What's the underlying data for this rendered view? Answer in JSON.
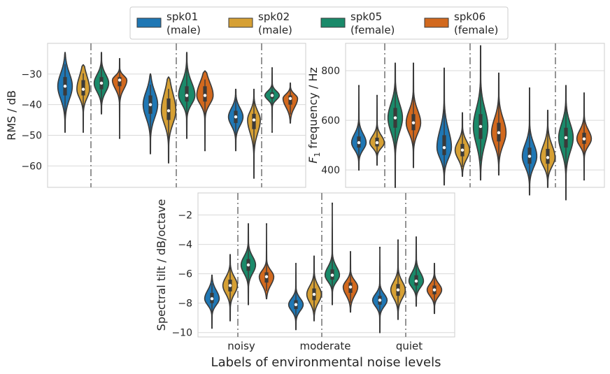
{
  "legend": [
    {
      "name": "spk01",
      "sub": "(male)",
      "color": "#1f77b4"
    },
    {
      "name": "spk02",
      "sub": "(male)",
      "color": "#d6a034"
    },
    {
      "name": "spk05",
      "sub": "(female)",
      "color": "#1a8a6a"
    },
    {
      "name": "spk06",
      "sub": "(female)",
      "color": "#d2691e"
    }
  ],
  "xlabel": "Labels of environmental noise levels",
  "categories": [
    "noisy",
    "moderate",
    "quiet"
  ],
  "chart_data": [
    {
      "type": "violin",
      "ylabel": "RMS / dB",
      "ylim": [
        -67,
        -20
      ],
      "yticks": [
        -30,
        -40,
        -50,
        -60
      ],
      "ytick_labels": [
        "−30",
        "−40",
        "−50",
        "−60"
      ],
      "series": [
        {
          "name": "spk01",
          "values": [
            {
              "median": -34,
              "q1": -37,
              "q3": -31,
              "min": -49,
              "max": -23,
              "width": 0.8
            },
            {
              "median": -40,
              "q1": -43,
              "q3": -37,
              "min": -56,
              "max": -30,
              "width": 0.8
            },
            {
              "median": -44,
              "q1": -46,
              "q3": -42,
              "min": -55,
              "max": -35,
              "width": 0.8
            }
          ]
        },
        {
          "name": "spk02",
          "values": [
            {
              "median": -35,
              "q1": -37,
              "q3": -32,
              "min": -49,
              "max": -27,
              "width": 0.7
            },
            {
              "median": -42,
              "q1": -45,
              "q3": -38,
              "min": -59,
              "max": -31,
              "width": 0.8
            },
            {
              "median": -45,
              "q1": -48,
              "q3": -43,
              "min": -64,
              "max": -35,
              "width": 0.7
            }
          ]
        },
        {
          "name": "spk05",
          "values": [
            {
              "median": -33,
              "q1": -35,
              "q3": -31,
              "min": -43,
              "max": -23,
              "width": 0.8
            },
            {
              "median": -37,
              "q1": -39,
              "q3": -34,
              "min": -51,
              "max": -23,
              "width": 0.9
            },
            {
              "median": -37,
              "q1": -38,
              "q3": -36,
              "min": -49,
              "max": -28,
              "width": 0.8
            }
          ]
        },
        {
          "name": "spk06",
          "values": [
            {
              "median": -32,
              "q1": -34,
              "q3": -31,
              "min": -51,
              "max": -25,
              "width": 0.8
            },
            {
              "median": -37,
              "q1": -39,
              "q3": -34,
              "min": -55,
              "max": -29,
              "width": 0.9
            },
            {
              "median": -38,
              "q1": -40,
              "q3": -37,
              "min": -46,
              "max": -33,
              "width": 0.8
            }
          ]
        }
      ]
    },
    {
      "type": "violin",
      "ylabel_main": "F",
      "ylabel_sub": "1",
      "ylabel_rest": " frequency / Hz",
      "ylim": [
        330,
        910
      ],
      "yticks": [
        400,
        600,
        800
      ],
      "ytick_labels": [
        "400",
        "600",
        "800"
      ],
      "series": [
        {
          "name": "spk01",
          "values": [
            {
              "median": 510,
              "q1": 490,
              "q3": 535,
              "min": 400,
              "max": 740,
              "width": 0.8
            },
            {
              "median": 490,
              "q1": 460,
              "q3": 540,
              "min": 340,
              "max": 810,
              "width": 0.8
            },
            {
              "median": 455,
              "q1": 425,
              "q3": 490,
              "min": 300,
              "max": 730,
              "width": 0.8
            }
          ]
        },
        {
          "name": "spk02",
          "values": [
            {
              "median": 510,
              "q1": 495,
              "q3": 530,
              "min": 420,
              "max": 700,
              "width": 0.8
            },
            {
              "median": 480,
              "q1": 455,
              "q3": 505,
              "min": 375,
              "max": 630,
              "width": 0.8
            },
            {
              "median": 450,
              "q1": 425,
              "q3": 485,
              "min": 330,
              "max": 640,
              "width": 0.8
            }
          ]
        },
        {
          "name": "spk05",
          "values": [
            {
              "median": 610,
              "q1": 570,
              "q3": 650,
              "min": 330,
              "max": 830,
              "width": 0.8
            },
            {
              "median": 575,
              "q1": 525,
              "q3": 625,
              "min": 360,
              "max": 900,
              "width": 0.8
            },
            {
              "median": 530,
              "q1": 490,
              "q3": 570,
              "min": 280,
              "max": 740,
              "width": 0.8
            }
          ]
        },
        {
          "name": "spk06",
          "values": [
            {
              "median": 590,
              "q1": 560,
              "q3": 625,
              "min": 410,
              "max": 830,
              "width": 0.8
            },
            {
              "median": 550,
              "q1": 515,
              "q3": 590,
              "min": 380,
              "max": 790,
              "width": 0.8
            },
            {
              "median": 525,
              "q1": 505,
              "q3": 550,
              "min": 360,
              "max": 710,
              "width": 0.8
            }
          ]
        }
      ]
    },
    {
      "type": "violin",
      "ylabel": "Spectral tilt / dB/octave",
      "ylim": [
        -10.3,
        -0.5
      ],
      "yticks": [
        -2,
        -4,
        -6,
        -8,
        -10
      ],
      "ytick_labels": [
        "−2",
        "−4",
        "−6",
        "−8",
        "−10"
      ],
      "series": [
        {
          "name": "spk01",
          "values": [
            {
              "median": -7.7,
              "q1": -8.0,
              "q3": -7.3,
              "min": -9.7,
              "max": -6.1,
              "width": 0.8
            },
            {
              "median": -8.1,
              "q1": -8.4,
              "q3": -7.8,
              "min": -9.8,
              "max": -5.3,
              "width": 0.8
            },
            {
              "median": -7.8,
              "q1": -8.1,
              "q3": -7.5,
              "min": -10.0,
              "max": -4.2,
              "width": 0.8
            }
          ]
        },
        {
          "name": "spk02",
          "values": [
            {
              "median": -6.8,
              "q1": -7.2,
              "q3": -6.4,
              "min": -9.2,
              "max": -4.7,
              "width": 0.8
            },
            {
              "median": -7.4,
              "q1": -7.8,
              "q3": -7.0,
              "min": -9.2,
              "max": -4.8,
              "width": 0.8
            },
            {
              "median": -7.1,
              "q1": -7.5,
              "q3": -6.7,
              "min": -9.1,
              "max": -3.7,
              "width": 0.8
            }
          ]
        },
        {
          "name": "spk05",
          "values": [
            {
              "median": -5.4,
              "q1": -5.8,
              "q3": -5.0,
              "min": -8.1,
              "max": -2.6,
              "width": 0.8
            },
            {
              "median": -6.1,
              "q1": -6.4,
              "q3": -5.7,
              "min": -8.1,
              "max": -1.2,
              "width": 0.8
            },
            {
              "median": -6.5,
              "q1": -6.8,
              "q3": -6.1,
              "min": -8.2,
              "max": -3.5,
              "width": 0.8
            }
          ]
        },
        {
          "name": "spk06",
          "values": [
            {
              "median": -6.2,
              "q1": -6.6,
              "q3": -5.9,
              "min": -7.7,
              "max": -2.6,
              "width": 0.8
            },
            {
              "median": -6.9,
              "q1": -7.3,
              "q3": -6.6,
              "min": -8.6,
              "max": -4.5,
              "width": 0.8
            },
            {
              "median": -7.1,
              "q1": -7.4,
              "q3": -6.8,
              "min": -8.7,
              "max": -5.3,
              "width": 0.8
            }
          ]
        }
      ]
    }
  ]
}
